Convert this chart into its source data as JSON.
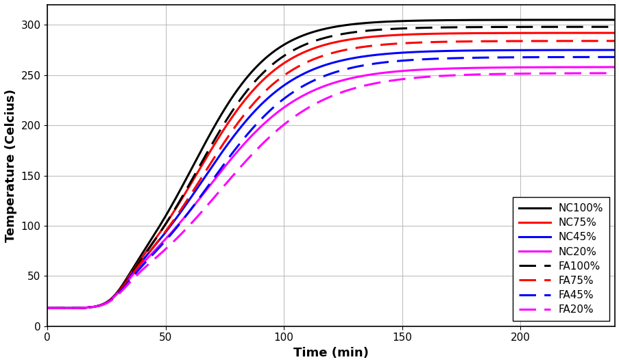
{
  "xlabel": "Time (min)",
  "ylabel": "Temperature (Celcius)",
  "xlim": [
    0,
    240
  ],
  "ylim": [
    0,
    320
  ],
  "xticks": [
    0,
    50,
    100,
    150,
    200
  ],
  "yticks": [
    0,
    50,
    100,
    150,
    200,
    250,
    300
  ],
  "series": [
    {
      "label": "NC100%",
      "color": "#000000",
      "linestyle": "solid",
      "lw": 2.2,
      "params": {
        "T_init": 18,
        "T_max": 305,
        "k": 0.062,
        "t_mid": 62,
        "delay": 30,
        "delay_k": 0.25
      }
    },
    {
      "label": "NC75%",
      "color": "#ff0000",
      "linestyle": "solid",
      "lw": 2.2,
      "params": {
        "T_init": 18,
        "T_max": 292,
        "k": 0.058,
        "t_mid": 64,
        "delay": 30,
        "delay_k": 0.25
      }
    },
    {
      "label": "NC45%",
      "color": "#0000ff",
      "linestyle": "solid",
      "lw": 2.2,
      "params": {
        "T_init": 18,
        "T_max": 275,
        "k": 0.054,
        "t_mid": 66,
        "delay": 30,
        "delay_k": 0.25
      }
    },
    {
      "label": "NC20%",
      "color": "#ff00ff",
      "linestyle": "solid",
      "lw": 2.2,
      "params": {
        "T_init": 18,
        "T_max": 258,
        "k": 0.05,
        "t_mid": 68,
        "delay": 30,
        "delay_k": 0.25
      }
    },
    {
      "label": "FA100%",
      "color": "#000000",
      "linestyle": "dashed",
      "lw": 2.2,
      "params": {
        "T_init": 18,
        "T_max": 298,
        "k": 0.06,
        "t_mid": 64,
        "delay": 30,
        "delay_k": 0.25
      }
    },
    {
      "label": "FA75%",
      "color": "#ff0000",
      "linestyle": "dashed",
      "lw": 2.2,
      "params": {
        "T_init": 18,
        "T_max": 284,
        "k": 0.056,
        "t_mid": 66,
        "delay": 30,
        "delay_k": 0.25
      }
    },
    {
      "label": "FA45%",
      "color": "#0000ff",
      "linestyle": "dashed",
      "lw": 2.2,
      "params": {
        "T_init": 18,
        "T_max": 268,
        "k": 0.052,
        "t_mid": 69,
        "delay": 30,
        "delay_k": 0.25
      }
    },
    {
      "label": "FA20%",
      "color": "#ff00ff",
      "linestyle": "dashed",
      "lw": 2.2,
      "params": {
        "T_init": 18,
        "T_max": 252,
        "k": 0.047,
        "t_mid": 73,
        "delay": 30,
        "delay_k": 0.25
      }
    }
  ],
  "background_color": "#ffffff",
  "grid_color": "#b0b0b0",
  "legend_fontsize": 11,
  "axis_label_fontsize": 13,
  "dash_pattern": [
    8,
    4
  ]
}
